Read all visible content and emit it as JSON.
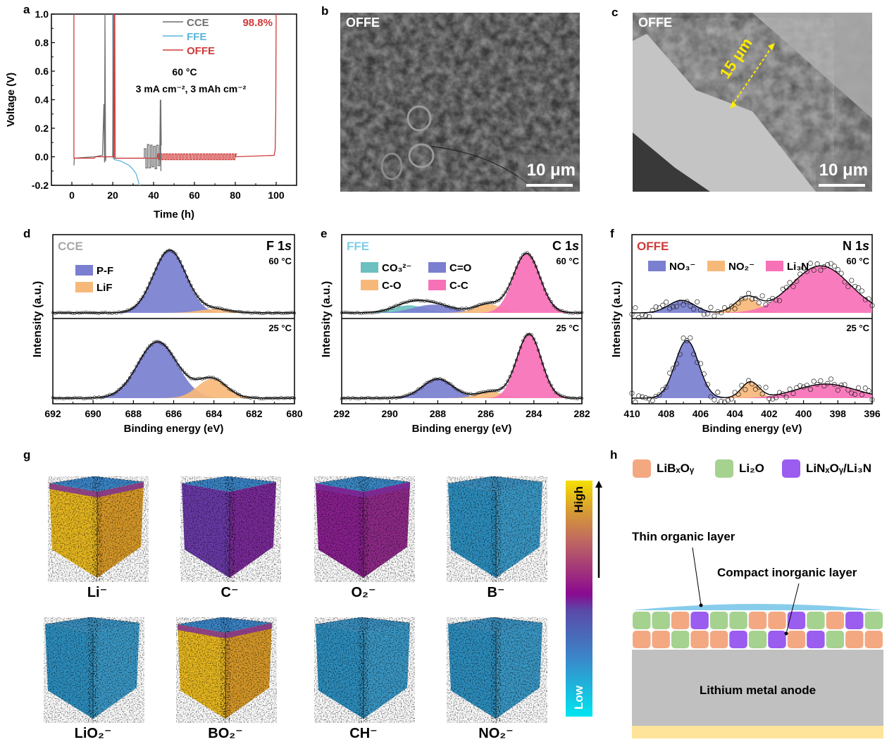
{
  "panel_labels": {
    "a": "a",
    "b": "b",
    "c": "c",
    "d": "d",
    "e": "e",
    "f": "f",
    "g": "g",
    "h": "h"
  },
  "colors": {
    "CCE": "#6f6f6f",
    "FFE": "#5bb5dc",
    "OFFE": "#d03a3a",
    "P_F": "#7a7fd0",
    "LiF": "#f7b97a",
    "CO3": "#6cc0c0",
    "C_O_double": "#7a7fd0",
    "C_O": "#f7b97a",
    "C_C": "#f771b7",
    "NO3": "#7a7fd0",
    "NO2": "#f7b97a",
    "Li3N": "#f771b7",
    "LiBxOy": "#f4a882",
    "Li2O": "#a6d290",
    "LiNxOy": "#9b5cf0",
    "organic": "#88ccec",
    "anode": "#c0c0c0",
    "collector": "#fde49a"
  },
  "chart_data": [
    {
      "id": "a",
      "type": "line",
      "title": "",
      "xlabel": "Time (h)",
      "ylabel": "Voltage (V)",
      "xlim": [
        -10,
        110
      ],
      "ylim": [
        -0.2,
        1.0
      ],
      "xticks": [
        0,
        20,
        40,
        60,
        80,
        100
      ],
      "yticks": [
        -0.2,
        0.0,
        0.2,
        0.4,
        0.6,
        0.8,
        1.0
      ],
      "ytick_labels": [
        "-0.2",
        "0.0",
        "0.2",
        "0.4",
        "0.6",
        "0.8",
        "1.0"
      ],
      "legend": [
        "CCE",
        "FFE",
        "OFFE"
      ],
      "legend_position": "top-center",
      "annotations": [
        "60 °C",
        "3 mA cm⁻², 3 mAh cm⁻²",
        "98.8%"
      ],
      "series": [
        {
          "name": "OFFE",
          "x": [
            1,
            1,
            1.2,
            11,
            11.5,
            20,
            20.7,
            20.7,
            21,
            21.2,
            42,
            99,
            99.5,
            99.8,
            100
          ],
          "y": [
            1.0,
            -0.01,
            -0.01,
            -0.01,
            0.0,
            0.0,
            0.0,
            1.0,
            1.0,
            -0.01,
            -0.01,
            0.01,
            0.05,
            0.3,
            1.0
          ],
          "cycling": {
            "from": 42,
            "to": 80,
            "period": 1.4,
            "amp": 0.02
          }
        },
        {
          "name": "CCE",
          "x": [
            1,
            1.2,
            11,
            15,
            15.7,
            16,
            16.2,
            16.5,
            16.7,
            17,
            20,
            20.2,
            20.4,
            35.5,
            43.5
          ],
          "y": [
            -0.06,
            -0.01,
            0.0,
            0.01,
            0.37,
            -0.04,
            1.0,
            -0.03,
            0.0,
            0.0,
            0.0,
            1.0,
            -0.01,
            -0.01,
            0.4
          ],
          "cycling": {
            "from": 35.5,
            "to": 43.5,
            "period": 1.5,
            "amp": 0.08
          }
        },
        {
          "name": "FFE",
          "x": [
            20,
            20.3,
            21,
            24,
            28,
            30,
            31.5,
            32.5,
            33,
            33.5
          ],
          "y": [
            1.0,
            -0.01,
            -0.02,
            -0.03,
            -0.06,
            -0.09,
            -0.12,
            -0.17,
            -0.2,
            -0.2
          ]
        }
      ]
    },
    {
      "id": "d",
      "type": "area",
      "title": "F 1s",
      "sample": "CCE",
      "xlabel": "Binding energy (eV)",
      "ylabel": "Intensity (a.u.)",
      "xlim": [
        692,
        680
      ],
      "xticks": [
        692,
        690,
        688,
        686,
        684,
        682,
        680
      ],
      "legend": [
        "P-F",
        "LiF"
      ],
      "subplots": [
        {
          "temp": "60 °C",
          "peaks": [
            {
              "name": "P-F",
              "center": 686.2,
              "height": 1.0,
              "fwhm": 1.9
            },
            {
              "name": "LiF",
              "center": 684.0,
              "height": 0.06,
              "fwhm": 1.8
            }
          ]
        },
        {
          "temp": "25 °C",
          "peaks": [
            {
              "name": "P-F",
              "center": 686.8,
              "height": 0.88,
              "fwhm": 2.3
            },
            {
              "name": "LiF",
              "center": 684.1,
              "height": 0.3,
              "fwhm": 1.7
            }
          ]
        }
      ]
    },
    {
      "id": "e",
      "type": "area",
      "title": "C 1s",
      "sample": "FFE",
      "xlabel": "Binding energy (eV)",
      "ylabel": "Intensity (a.u.)",
      "xlim": [
        292,
        282
      ],
      "xticks": [
        292,
        290,
        288,
        286,
        284,
        282
      ],
      "legend": [
        "CO₃²⁻",
        "C=O",
        "C-O",
        "C-C"
      ],
      "subplots": [
        {
          "temp": "60 °C",
          "peaks": [
            {
              "name": "CO3",
              "center": 289.2,
              "height": 0.12,
              "fwhm": 1.6
            },
            {
              "name": "C=O",
              "center": 288.2,
              "height": 0.13,
              "fwhm": 1.9
            },
            {
              "name": "C-O",
              "center": 285.9,
              "height": 0.14,
              "fwhm": 1.3
            },
            {
              "name": "C-C",
              "center": 284.3,
              "height": 0.95,
              "fwhm": 1.3
            }
          ]
        },
        {
          "temp": "25 °C",
          "peaks": [
            {
              "name": "C=O",
              "center": 288.0,
              "height": 0.3,
              "fwhm": 1.5
            },
            {
              "name": "C-O",
              "center": 285.8,
              "height": 0.1,
              "fwhm": 1.3
            },
            {
              "name": "C-C",
              "center": 284.2,
              "height": 1.0,
              "fwhm": 1.2
            }
          ]
        }
      ]
    },
    {
      "id": "f",
      "type": "area",
      "title": "N 1s",
      "sample": "OFFE",
      "xlabel": "Binding energy (eV)",
      "ylabel": "Intensity (a.u.)",
      "xlim": [
        410,
        396
      ],
      "xticks": [
        410,
        408,
        406,
        404,
        402,
        400,
        398,
        396
      ],
      "legend": [
        "NO₃⁻",
        "NO₂⁻",
        "Li₃N"
      ],
      "subplots": [
        {
          "temp": "60 °C",
          "peaks": [
            {
              "name": "NO3",
              "center": 407.1,
              "height": 0.2,
              "fwhm": 1.8
            },
            {
              "name": "NO2",
              "center": 403.3,
              "height": 0.24,
              "fwhm": 1.6
            },
            {
              "name": "Li3N",
              "center": 399.0,
              "height": 0.75,
              "fwhm": 4.0
            }
          ]
        },
        {
          "temp": "25 °C",
          "peaks": [
            {
              "name": "NO3",
              "center": 406.8,
              "height": 0.9,
              "fwhm": 1.6
            },
            {
              "name": "NO2",
              "center": 403.1,
              "height": 0.25,
              "fwhm": 1.2
            },
            {
              "name": "Li3N",
              "center": 398.7,
              "height": 0.22,
              "fwhm": 4.0
            }
          ]
        }
      ]
    }
  ],
  "sem_b": {
    "label": "OFFE",
    "scale": "10 μm"
  },
  "sem_c": {
    "label": "OFFE",
    "scale": "10 μm",
    "thickness": "15 μm"
  },
  "tof_sims": {
    "cubes": [
      {
        "label": "Li⁻",
        "level": "high"
      },
      {
        "label": "C⁻",
        "level": "medium"
      },
      {
        "label": "O₂⁻",
        "level": "medium-high"
      },
      {
        "label": "B⁻",
        "level": "low"
      },
      {
        "label": "LiO₂⁻",
        "level": "low"
      },
      {
        "label": "BO₂⁻",
        "level": "high"
      },
      {
        "label": "CH⁻",
        "level": "low"
      },
      {
        "label": "NO₂⁻",
        "level": "low"
      }
    ],
    "colorbar": {
      "high": "High",
      "low": "Low"
    }
  },
  "schematic": {
    "legend": [
      {
        "key": "LiBxOy",
        "label": "LiBₓOᵧ"
      },
      {
        "key": "Li2O",
        "label": "Li₂O"
      },
      {
        "key": "LiNxOy",
        "label": "LiNₓOᵧ/Li₃N"
      }
    ],
    "thin_organic": "Thin organic layer",
    "compact_inorganic": "Compact inorganic layer",
    "anode": "Lithium metal anode",
    "row1": [
      "Li2O",
      "Li2O",
      "LiBxOy",
      "LiNxOy",
      "Li2O",
      "Li2O",
      "LiBxOy",
      "LiBxOy",
      "LiNxOy",
      "Li2O",
      "LiBxOy",
      "LiNxOy",
      "Li2O"
    ],
    "row2": [
      "LiBxOy",
      "LiBxOy",
      "Li2O",
      "LiBxOy",
      "LiBxOy",
      "LiNxOy",
      "Li2O",
      "LiNxOy",
      "LiBxOy",
      "LiNxOy",
      "Li2O",
      "LiBxOy",
      "LiBxOy"
    ]
  }
}
